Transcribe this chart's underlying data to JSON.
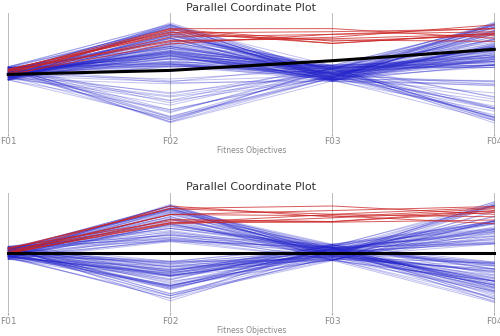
{
  "title": "Parallel Coordinate Plot",
  "xlabel": "Fitness Objectives",
  "axes": [
    "F01",
    "F02",
    "F03",
    "F04"
  ],
  "n_blue_lines": 120,
  "n_red_lines": 10,
  "background_color": "#ffffff",
  "blue_color": "#2222cc",
  "red_color": "#cc2222",
  "black_line_color": "#000000",
  "blue_alpha": 0.28,
  "red_alpha": 0.75,
  "black_lw": 2.2,
  "line_lw": 0.7,
  "title_fontsize": 8,
  "axis_label_fontsize": 6.5,
  "xlabel_fontsize": 5.5
}
